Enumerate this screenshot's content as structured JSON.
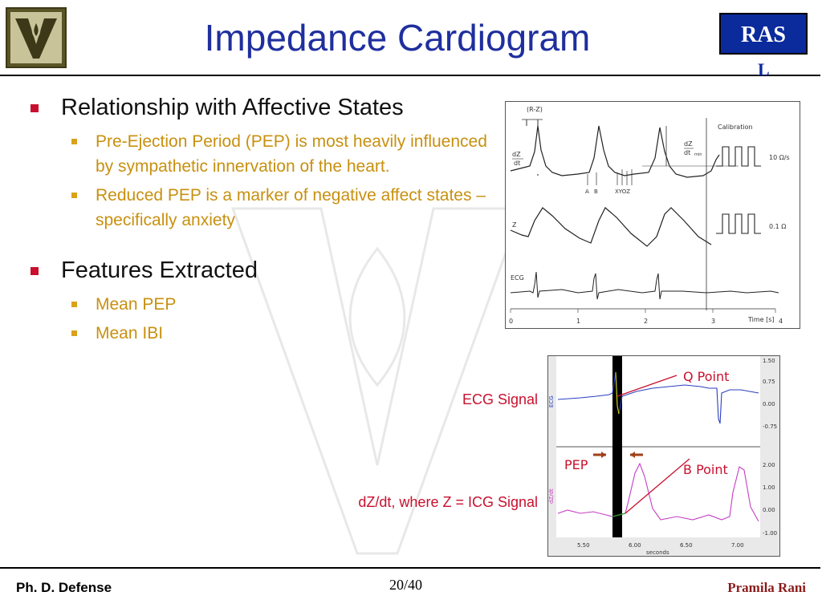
{
  "header": {
    "title": "Impedance Cardiogram",
    "ras_badge": "RAS",
    "ras_badge_cut": "L"
  },
  "bullets": [
    {
      "label": "Relationship with Affective States",
      "subitems": [
        "Pre-Ejection Period (PEP) is most heavily influenced by sympathetic innervation of the heart.",
        "Reduced PEP is a marker of negative affect states – specifically anxiety"
      ]
    },
    {
      "label": "Features Extracted",
      "subitems": [
        "Mean PEP",
        "Mean IBI"
      ]
    }
  ],
  "figure_top": {
    "rz_label": "(R-Z)",
    "dzdt_label_num": "dZ",
    "dzdt_label_den": "dt",
    "dzdt_min_num": "dZ",
    "dzdt_min_den": "dt",
    "dzdt_min_sub": "min",
    "calibration": "Calibration",
    "cal1": "10 Ω/s",
    "cal2": "0.1 Ω",
    "point_a": "A",
    "point_b": "B",
    "points_xyoz": "XYOZ",
    "z_label": "Z",
    "ecg_label": "ECG",
    "axis_ticks": [
      "0",
      "1",
      "2",
      "3",
      "4"
    ],
    "axis_title": "Time [s]"
  },
  "figure_bottom": {
    "ecg_axis": "ECG",
    "icg_axis": "dZ/dt",
    "ecg_ticks": [
      "1.50",
      "0.75",
      "0.00",
      "-0.75"
    ],
    "icg_ticks": [
      "2.00",
      "1.00",
      "0.00",
      "-1.00"
    ],
    "x_ticks": [
      "5.50",
      "6.00",
      "6.50",
      "7.00"
    ],
    "x_title": "seconds",
    "q_point": "Q Point",
    "b_point": "B Point",
    "pep": "PEP"
  },
  "labels": {
    "ecg_signal": "ECG Signal",
    "icg_signal": "dZ/dt, where Z = ICG Signal"
  },
  "footer": {
    "left": "Ph. D. Defense",
    "page": "20/40",
    "right": "Pramila Rani"
  },
  "colors": {
    "title": "#1f2f9e",
    "bullet_l1": "#c8102e",
    "bullet_l2_text": "#c8900f",
    "annotation": "#c8102e",
    "ecg_trace": "#2a3fbf",
    "icg_trace": "#c43fc4"
  }
}
